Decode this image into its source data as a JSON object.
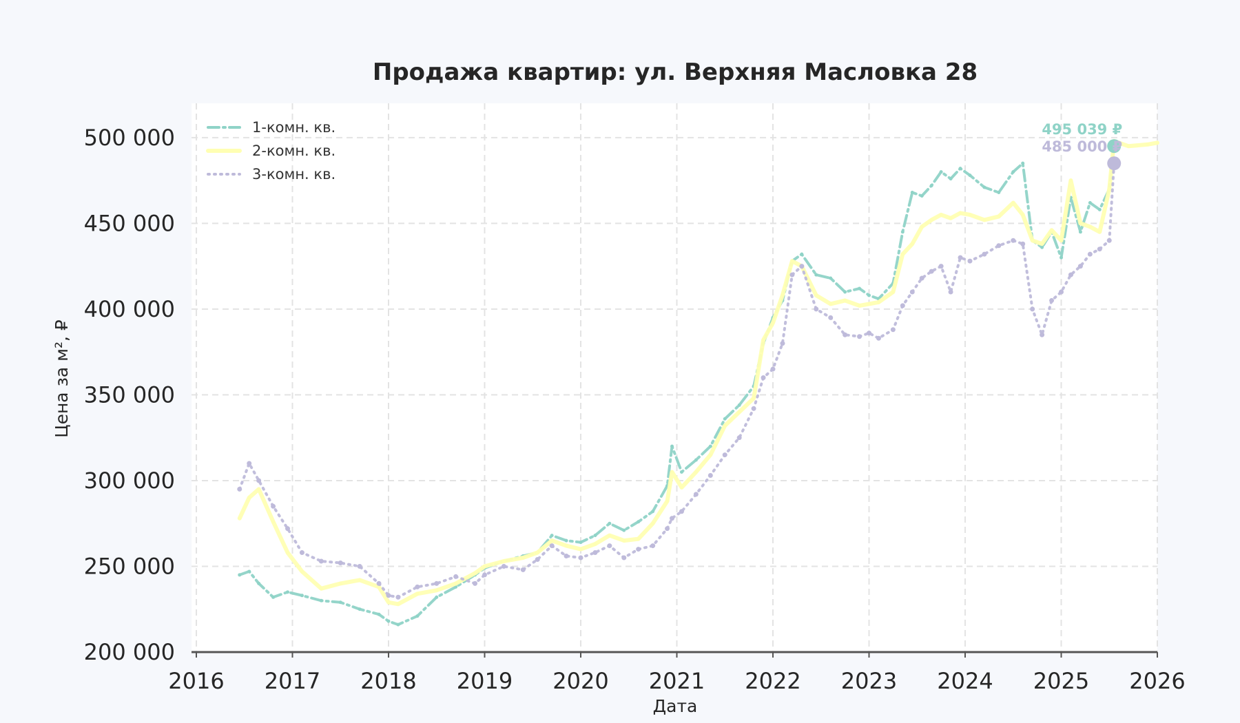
{
  "chart_data": {
    "type": "line",
    "title": "Продажа квартир: ул. Верхняя Масловка 28",
    "xlabel": "Дата",
    "ylabel": "Цена за м², ₽",
    "xlim": [
      2016,
      2026
    ],
    "ylim": [
      200000,
      520000
    ],
    "x_ticks": [
      "2016",
      "2017",
      "2018",
      "2019",
      "2020",
      "2021",
      "2022",
      "2023",
      "2024",
      "2025",
      "2026"
    ],
    "y_ticks": [
      "200 000",
      "250 000",
      "300 000",
      "350 000",
      "400 000",
      "450 000",
      "500 000"
    ],
    "grid": true,
    "legend_position": "top-left",
    "series": [
      {
        "name": "1-комн. кв.",
        "color": "#8fd3c7",
        "style": "dash-dot",
        "x": [
          2016.45,
          2016.55,
          2016.65,
          2016.8,
          2016.95,
          2017.1,
          2017.3,
          2017.5,
          2017.7,
          2017.9,
          2018.0,
          2018.1,
          2018.3,
          2018.5,
          2018.7,
          2018.9,
          2019.0,
          2019.2,
          2019.4,
          2019.55,
          2019.7,
          2019.85,
          2020.0,
          2020.15,
          2020.3,
          2020.45,
          2020.6,
          2020.75,
          2020.9,
          2020.95,
          2021.05,
          2021.2,
          2021.35,
          2021.5,
          2021.65,
          2021.8,
          2021.9,
          2022.0,
          2022.1,
          2022.2,
          2022.3,
          2022.45,
          2022.6,
          2022.75,
          2022.9,
          2023.0,
          2023.1,
          2023.25,
          2023.35,
          2023.45,
          2023.55,
          2023.65,
          2023.75,
          2023.85,
          2023.95,
          2024.05,
          2024.2,
          2024.35,
          2024.5,
          2024.6,
          2024.7,
          2024.8,
          2024.9,
          2025.0,
          2025.1,
          2025.2,
          2025.3,
          2025.4,
          2025.5,
          2025.55
        ],
        "values": [
          245000,
          247000,
          240000,
          232000,
          235000,
          233000,
          230000,
          229000,
          225000,
          222000,
          218000,
          216000,
          221000,
          232000,
          238000,
          245000,
          249000,
          253000,
          256000,
          258000,
          268000,
          265000,
          264000,
          268000,
          275000,
          271000,
          276000,
          282000,
          297000,
          320000,
          305000,
          312000,
          320000,
          336000,
          344000,
          355000,
          380000,
          395000,
          405000,
          428000,
          432000,
          420000,
          418000,
          410000,
          412000,
          408000,
          406000,
          415000,
          445000,
          468000,
          466000,
          472000,
          480000,
          476000,
          482000,
          478000,
          471000,
          468000,
          480000,
          485000,
          440000,
          436000,
          445000,
          430000,
          465000,
          445000,
          462000,
          458000,
          470000,
          495039
        ]
      },
      {
        "name": "2-комн. кв.",
        "color": "#ffffb3",
        "style": "solid",
        "x": [
          2016.45,
          2016.55,
          2016.65,
          2016.8,
          2016.95,
          2017.1,
          2017.3,
          2017.5,
          2017.7,
          2017.9,
          2018.0,
          2018.1,
          2018.3,
          2018.5,
          2018.7,
          2018.9,
          2019.0,
          2019.2,
          2019.4,
          2019.55,
          2019.7,
          2019.85,
          2020.0,
          2020.15,
          2020.3,
          2020.45,
          2020.6,
          2020.75,
          2020.9,
          2020.95,
          2021.05,
          2021.2,
          2021.35,
          2021.5,
          2021.65,
          2021.8,
          2021.9,
          2022.0,
          2022.1,
          2022.2,
          2022.3,
          2022.45,
          2022.6,
          2022.75,
          2022.9,
          2023.0,
          2023.1,
          2023.25,
          2023.35,
          2023.45,
          2023.55,
          2023.65,
          2023.75,
          2023.85,
          2023.95,
          2024.05,
          2024.2,
          2024.35,
          2024.5,
          2024.6,
          2024.7,
          2024.8,
          2024.9,
          2025.0,
          2025.1,
          2025.2,
          2025.3,
          2025.4,
          2025.5,
          2025.55,
          2025.7,
          2025.9,
          2026.0
        ],
        "values": [
          278000,
          290000,
          295000,
          276000,
          258000,
          247000,
          237000,
          240000,
          242000,
          238000,
          229000,
          228000,
          234000,
          236000,
          240000,
          246000,
          250000,
          253000,
          255000,
          258000,
          265000,
          262000,
          260000,
          263000,
          268000,
          265000,
          266000,
          275000,
          288000,
          305000,
          296000,
          305000,
          315000,
          332000,
          340000,
          348000,
          382000,
          392000,
          408000,
          428000,
          425000,
          408000,
          403000,
          405000,
          402000,
          403000,
          404000,
          410000,
          432000,
          438000,
          448000,
          452000,
          455000,
          453000,
          456000,
          455000,
          452000,
          454000,
          462000,
          455000,
          440000,
          438000,
          446000,
          440000,
          475000,
          450000,
          448000,
          445000,
          470000,
          498000,
          495000,
          496000,
          497000
        ]
      },
      {
        "name": "3-комн. кв.",
        "color": "#bebada",
        "style": "dotted",
        "x": [
          2016.45,
          2016.55,
          2016.65,
          2016.8,
          2016.95,
          2017.1,
          2017.3,
          2017.5,
          2017.7,
          2017.9,
          2018.0,
          2018.1,
          2018.3,
          2018.5,
          2018.7,
          2018.9,
          2019.0,
          2019.2,
          2019.4,
          2019.55,
          2019.7,
          2019.85,
          2020.0,
          2020.15,
          2020.3,
          2020.45,
          2020.6,
          2020.75,
          2020.9,
          2020.95,
          2021.05,
          2021.2,
          2021.35,
          2021.5,
          2021.65,
          2021.8,
          2021.9,
          2022.0,
          2022.1,
          2022.2,
          2022.3,
          2022.45,
          2022.6,
          2022.75,
          2022.9,
          2023.0,
          2023.1,
          2023.25,
          2023.35,
          2023.45,
          2023.55,
          2023.65,
          2023.75,
          2023.85,
          2023.95,
          2024.05,
          2024.2,
          2024.35,
          2024.5,
          2024.6,
          2024.7,
          2024.8,
          2024.9,
          2025.0,
          2025.1,
          2025.2,
          2025.3,
          2025.4,
          2025.5,
          2025.55
        ],
        "values": [
          295000,
          310000,
          300000,
          285000,
          272000,
          258000,
          253000,
          252000,
          250000,
          240000,
          233000,
          232000,
          238000,
          240000,
          244000,
          240000,
          245000,
          250000,
          248000,
          254000,
          262000,
          256000,
          255000,
          258000,
          262000,
          255000,
          260000,
          262000,
          272000,
          278000,
          282000,
          292000,
          303000,
          315000,
          325000,
          342000,
          360000,
          365000,
          380000,
          420000,
          425000,
          400000,
          395000,
          385000,
          384000,
          386000,
          383000,
          388000,
          402000,
          410000,
          418000,
          422000,
          425000,
          410000,
          430000,
          428000,
          432000,
          437000,
          440000,
          438000,
          400000,
          385000,
          405000,
          410000,
          420000,
          425000,
          432000,
          435000,
          440000,
          485000
        ]
      }
    ],
    "end_labels": [
      {
        "text": "495 039 ₽",
        "series": "1-комн. кв.",
        "x": 2025.55,
        "value": 495039
      },
      {
        "text": "485 000 ₽",
        "series": "3-комн. кв.",
        "x": 2025.55,
        "value": 485000
      }
    ]
  }
}
